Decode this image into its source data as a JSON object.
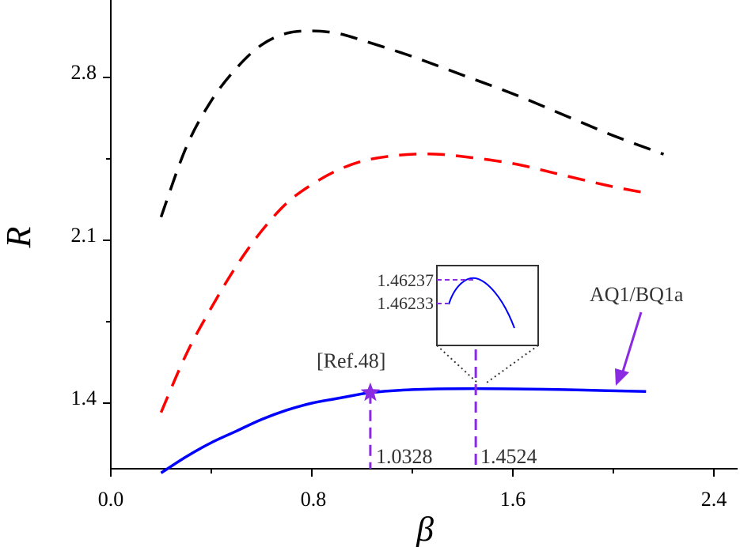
{
  "chart_data": {
    "type": "line",
    "xlabel": "β",
    "ylabel": "R",
    "xlim": [
      0,
      2.48
    ],
    "ylim": [
      1.1,
      3.0
    ],
    "x_ticks": [
      "0.0",
      "0.8",
      "1.6",
      "2.4"
    ],
    "y_ticks": [
      "1.4",
      "2.1",
      "2.8"
    ],
    "grid": false,
    "series": [
      {
        "style": "dashed",
        "color": "#000000",
        "x": [
          0.2,
          0.3,
          0.4,
          0.5,
          0.6,
          0.7,
          0.8,
          0.9,
          1.0,
          1.2,
          1.4,
          1.6,
          1.8,
          2.0,
          2.2
        ],
        "y": [
          2.2,
          2.5,
          2.7,
          2.84,
          2.94,
          2.99,
          3.0,
          2.99,
          2.96,
          2.89,
          2.81,
          2.73,
          2.64,
          2.55,
          2.47
        ]
      },
      {
        "style": "dashed",
        "color": "#ff0000",
        "x": [
          0.2,
          0.3,
          0.4,
          0.5,
          0.6,
          0.7,
          0.8,
          0.9,
          1.0,
          1.1,
          1.2,
          1.3,
          1.4,
          1.6,
          1.8,
          2.0,
          2.15
        ],
        "y": [
          1.36,
          1.61,
          1.81,
          1.99,
          2.14,
          2.26,
          2.34,
          2.4,
          2.44,
          2.46,
          2.47,
          2.47,
          2.46,
          2.43,
          2.38,
          2.33,
          2.3
        ]
      },
      {
        "name": "AQ1/BQ1a",
        "style": "solid",
        "color": "#0000ff",
        "x": [
          0.2,
          0.3,
          0.4,
          0.5,
          0.6,
          0.7,
          0.8,
          0.9,
          1.0,
          1.0328,
          1.1,
          1.2,
          1.3,
          1.4,
          1.4524,
          1.5,
          1.6,
          1.8,
          2.0,
          2.13
        ],
        "y": [
          1.1,
          1.17,
          1.23,
          1.28,
          1.33,
          1.37,
          1.4,
          1.42,
          1.44,
          1.445,
          1.452,
          1.458,
          1.461,
          1.462,
          1.4624,
          1.4623,
          1.461,
          1.458,
          1.453,
          1.45
        ]
      }
    ],
    "annotations": [
      {
        "text": "[Ref.48]",
        "x": 1.0328,
        "y": 1.445
      },
      {
        "text": "1.0328",
        "x": 1.0328
      },
      {
        "text": "1.4524",
        "x": 1.4524
      },
      {
        "text": "AQ1/BQ1a",
        "x": 2.0,
        "y": 1.46
      }
    ],
    "inset": {
      "y_ticks": [
        "1.46237",
        "1.46233"
      ]
    }
  }
}
